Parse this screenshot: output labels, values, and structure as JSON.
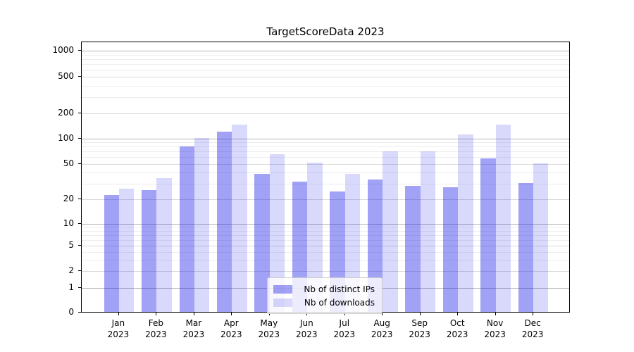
{
  "title": "TargetScoreData 2023",
  "chart_data": {
    "type": "bar",
    "title": "TargetScoreData 2023",
    "categories": [
      "Jan 2023",
      "Feb 2023",
      "Mar 2023",
      "Apr 2023",
      "May 2023",
      "Jun 2023",
      "Jul 2023",
      "Aug 2023",
      "Sep 2023",
      "Oct 2023",
      "Nov 2023",
      "Dec 2023"
    ],
    "x_months": [
      "Jan",
      "Feb",
      "Mar",
      "Apr",
      "May",
      "Jun",
      "Jul",
      "Aug",
      "Sep",
      "Oct",
      "Nov",
      "Dec"
    ],
    "x_year": "2023",
    "series": [
      {
        "name": "Nb of distinct IPs",
        "color": "rgba(20,20,230,0.40)",
        "values": [
          22,
          25,
          80,
          118,
          38,
          31,
          24,
          33,
          28,
          27,
          57,
          30
        ]
      },
      {
        "name": "Nb of downloads",
        "color": "rgba(20,20,230,0.16)",
        "values": [
          26,
          34,
          100,
          143,
          65,
          51,
          38,
          70,
          70,
          110,
          145,
          50
        ]
      }
    ],
    "yscale": "symlog",
    "ylim": [
      0,
      1300
    ],
    "yticks": [
      0,
      1,
      2,
      5,
      10,
      20,
      50,
      100,
      200,
      500,
      1000
    ],
    "grid": "both",
    "legend_position": "lower center",
    "colors": {
      "major_grid": "#b5b5b5",
      "mid_grid": "#d9d9d9",
      "minor_grid": "#ededed",
      "spine": "#000000"
    }
  }
}
